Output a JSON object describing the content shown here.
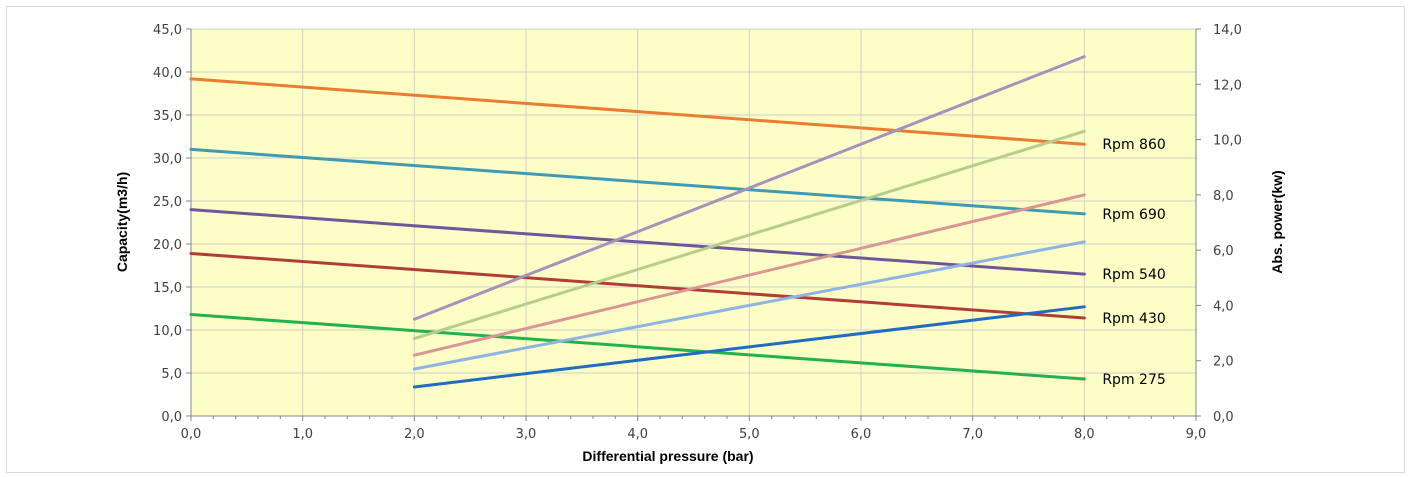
{
  "chart_data": {
    "type": "line",
    "title": "",
    "xlabel": "Differential pressure (bar)",
    "ylabel": "Capacity(m3/h)",
    "y2label": "Abs. power(kw)",
    "xlim": [
      0,
      9
    ],
    "ylim": [
      0,
      45
    ],
    "y2lim": [
      0,
      14
    ],
    "x_ticks": [
      "0,0",
      "1,0",
      "2,0",
      "3,0",
      "4,0",
      "5,0",
      "6,0",
      "7,0",
      "8,0",
      "9,0"
    ],
    "y_ticks": [
      "0,0",
      "5,0",
      "10,0",
      "15,0",
      "20,0",
      "25,0",
      "30,0",
      "35,0",
      "40,0",
      "45,0"
    ],
    "y2_ticks": [
      "0,0",
      "2,0",
      "4,0",
      "6,0",
      "8,0",
      "10,0",
      "12,0",
      "14,0"
    ],
    "grid": true,
    "plot_background": "#fdfdc6",
    "legend": "none",
    "capacity_series": [
      {
        "label": "Rpm 860",
        "color": "#e97c30",
        "x": [
          0,
          8
        ],
        "y": [
          39.2,
          31.6
        ]
      },
      {
        "label": "Rpm 690",
        "color": "#3f9ab6",
        "x": [
          0,
          8
        ],
        "y": [
          31.0,
          23.5
        ]
      },
      {
        "label": "Rpm 540",
        "color": "#70569a",
        "x": [
          0,
          8
        ],
        "y": [
          24.0,
          16.5
        ]
      },
      {
        "label": "Rpm 430",
        "color": "#b23c36",
        "x": [
          0,
          8
        ],
        "y": [
          18.9,
          11.4
        ]
      },
      {
        "label": "Rpm 275",
        "color": "#23b14d",
        "x": [
          0,
          8
        ],
        "y": [
          11.8,
          4.3
        ]
      }
    ],
    "power_series": [
      {
        "color": "#a693bd",
        "x": [
          2,
          8
        ],
        "y": [
          3.5,
          13.0
        ]
      },
      {
        "color": "#b5cf8a",
        "x": [
          2,
          8
        ],
        "y": [
          2.8,
          10.3
        ]
      },
      {
        "color": "#d99694",
        "x": [
          2,
          8
        ],
        "y": [
          2.2,
          8.0
        ]
      },
      {
        "color": "#8eb4e3",
        "x": [
          2,
          8
        ],
        "y": [
          1.7,
          6.3
        ]
      },
      {
        "color": "#1f6cc0",
        "x": [
          2,
          8
        ],
        "y": [
          1.05,
          3.95
        ]
      }
    ]
  }
}
